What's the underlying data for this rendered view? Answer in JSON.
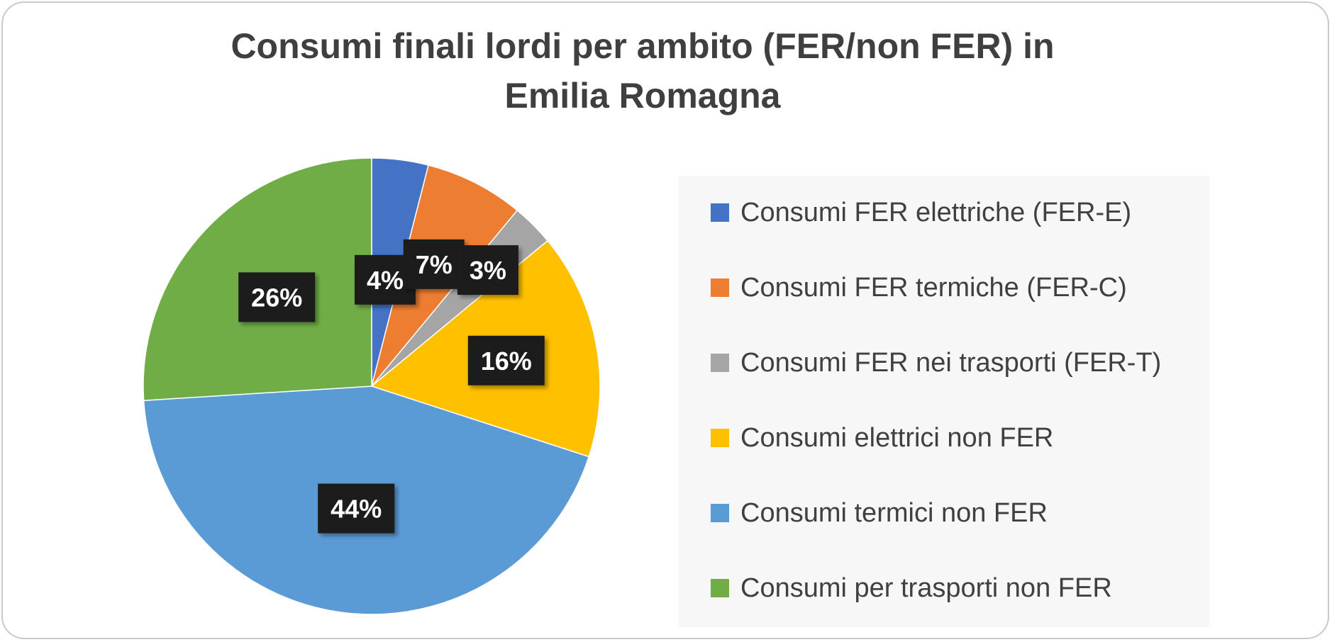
{
  "chart_data": {
    "type": "pie",
    "title": [
      "Consumi finali lordi per ambito (FER/non FER) in",
      "Emilia Romagna"
    ],
    "categories": [
      "Consumi FER elettriche (FER-E)",
      "Consumi FER termiche (FER-C)",
      "Consumi FER nei trasporti (FER-T)",
      "Consumi elettrici non FER",
      "Consumi termici non FER",
      "Consumi per trasporti non FER"
    ],
    "values": [
      4,
      7,
      3,
      16,
      44,
      26
    ],
    "data_labels": [
      "4%",
      "7%",
      "3%",
      "16%",
      "44%",
      "26%"
    ],
    "colors": [
      "#4472c4",
      "#ed7d31",
      "#a5a5a5",
      "#ffc000",
      "#5b9bd5",
      "#70ad47"
    ],
    "legend_position": "right"
  }
}
